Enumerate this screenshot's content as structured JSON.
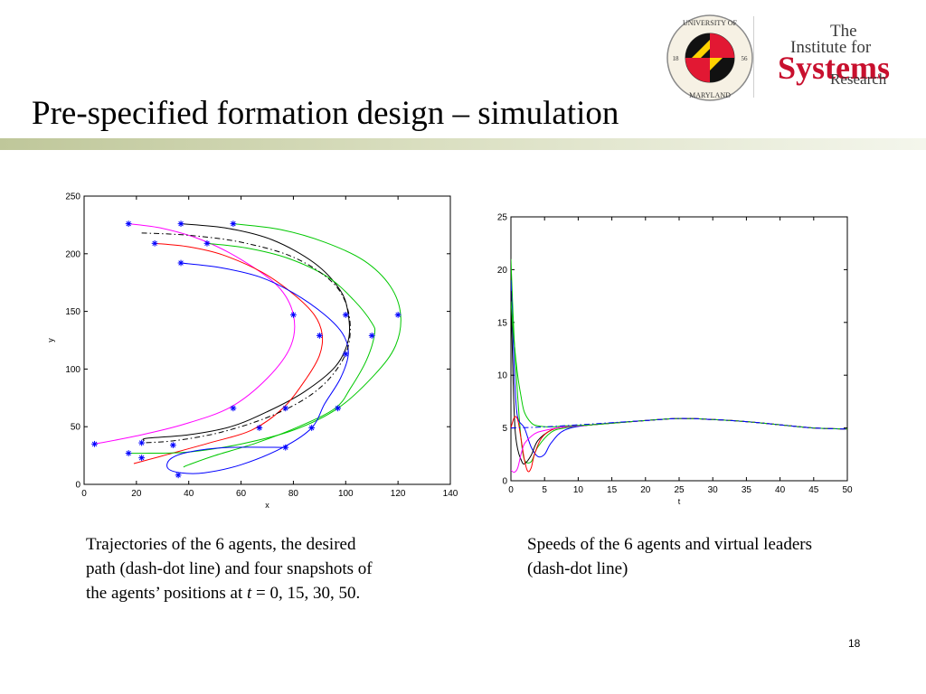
{
  "slide": {
    "title": "Pre-specified formation design – simulation",
    "page_number": "18",
    "accent_color": "#c8cf9f"
  },
  "logos": {
    "umd_seal": {
      "ring_top_text": "UNIVERSITY OF",
      "ring_bottom_text": "MARYLAND",
      "year_left": "18",
      "year_right": "56"
    },
    "isr": {
      "line1": "The",
      "line2": "Institute for",
      "line3": "Systems",
      "line4": "Research",
      "accent_color": "#c8102e"
    }
  },
  "captions": {
    "left_line1": "Trajectories of the 6 agents, the desired",
    "left_line2": "path (dash-dot line) and four snapshots of",
    "left_line3_pre": "the agents’ positions at ",
    "left_line3_var": "t",
    "left_line3_post": " = 0, 15, 30, 50.",
    "right_line1": "Speeds of the 6 agents and virtual leaders",
    "right_line2": "(dash-dot line)"
  },
  "chart_data": [
    {
      "type": "line",
      "xlabel": "x",
      "ylabel": "y",
      "xlim": [
        0,
        140
      ],
      "ylim": [
        0,
        250
      ],
      "xticks": [
        0,
        20,
        40,
        60,
        80,
        100,
        120,
        140
      ],
      "yticks": [
        0,
        50,
        100,
        150,
        200,
        250
      ],
      "grid": false,
      "series": [
        {
          "color": "#ff00ff",
          "style": "solid",
          "points": [
            [
              17,
              226
            ],
            [
              30,
              222
            ],
            [
              45,
              212
            ],
            [
              60,
              195
            ],
            [
              74,
              172
            ],
            [
              80,
              147
            ],
            [
              79,
              120
            ],
            [
              70,
              92
            ],
            [
              56,
              67
            ],
            [
              38,
              52
            ],
            [
              20,
              42
            ],
            [
              4,
              35
            ]
          ]
        },
        {
          "color": "#000000",
          "style": "solid",
          "points": [
            [
              37,
              226
            ],
            [
              55,
              222
            ],
            [
              72,
              212
            ],
            [
              88,
              192
            ],
            [
              98,
              168
            ],
            [
              101,
              147
            ],
            [
              101,
              125
            ],
            [
              96,
              102
            ],
            [
              84,
              80
            ],
            [
              70,
              63
            ],
            [
              56,
              50
            ],
            [
              40,
              43
            ],
            [
              24,
              40
            ],
            [
              23,
              38
            ]
          ]
        },
        {
          "color": "#ff0000",
          "style": "solid",
          "points": [
            [
              27,
              209
            ],
            [
              40,
              206
            ],
            [
              53,
              199
            ],
            [
              68,
              184
            ],
            [
              80,
              165
            ],
            [
              88,
              147
            ],
            [
              91,
              130
            ],
            [
              90,
              112
            ],
            [
              85,
              92
            ],
            [
              76,
              66
            ],
            [
              64,
              47
            ],
            [
              48,
              36
            ],
            [
              32,
              26
            ],
            [
              19,
              18
            ]
          ]
        },
        {
          "color": "#00c800",
          "style": "solid",
          "points": [
            [
              57,
              226
            ],
            [
              75,
              221
            ],
            [
              92,
              210
            ],
            [
              107,
              194
            ],
            [
              117,
              172
            ],
            [
              121,
              147
            ],
            [
              119,
              120
            ],
            [
              111,
              95
            ],
            [
              97,
              66
            ],
            [
              80,
              47
            ],
            [
              60,
              35
            ],
            [
              40,
              28
            ],
            [
              25,
              27
            ],
            [
              17,
              27
            ]
          ]
        },
        {
          "color": "#00c800",
          "style": "solid",
          "points": [
            [
              47,
              209
            ],
            [
              62,
              205
            ],
            [
              78,
              196
            ],
            [
              93,
              180
            ],
            [
              103,
              160
            ],
            [
              110,
              140
            ],
            [
              111,
              130
            ],
            [
              108,
              108
            ],
            [
              102,
              84
            ],
            [
              96,
              66
            ],
            [
              82,
              50
            ],
            [
              66,
              36
            ],
            [
              50,
              25
            ],
            [
              40,
              17
            ],
            [
              38,
              15
            ]
          ]
        },
        {
          "color": "#0000ff",
          "style": "solid",
          "points": [
            [
              37,
              192
            ],
            [
              52,
              188
            ],
            [
              67,
              180
            ],
            [
              80,
              166
            ],
            [
              92,
              147
            ],
            [
              99,
              130
            ],
            [
              101,
              113
            ],
            [
              98,
              92
            ],
            [
              92,
              70
            ],
            [
              87,
              49
            ],
            [
              76,
              32
            ],
            [
              60,
              17
            ],
            [
              46,
              10
            ],
            [
              37,
              10
            ],
            [
              32,
              14
            ],
            [
              33,
              22
            ],
            [
              40,
              28
            ],
            [
              55,
              32
            ],
            [
              77,
              32
            ]
          ]
        },
        {
          "color": "#000000",
          "style": "dashdot",
          "points": [
            [
              22,
              218
            ],
            [
              40,
              216
            ],
            [
              60,
              210
            ],
            [
              80,
              197
            ],
            [
              95,
              175
            ],
            [
              101,
              150
            ],
            [
              101,
              120
            ],
            [
              95,
              95
            ],
            [
              85,
              75
            ],
            [
              70,
              58
            ],
            [
              52,
              45
            ],
            [
              35,
              38
            ],
            [
              22,
              36
            ]
          ]
        }
      ],
      "snapshots": {
        "t0": [
          [
            17,
            226
          ],
          [
            37,
            226
          ],
          [
            57,
            226
          ],
          [
            27,
            209
          ],
          [
            47,
            209
          ],
          [
            37,
            192
          ]
        ],
        "t15": [
          [
            80,
            147
          ],
          [
            100,
            147
          ],
          [
            120,
            147
          ],
          [
            90,
            129
          ],
          [
            110,
            129
          ],
          [
            100,
            113
          ]
        ],
        "t30": [
          [
            57,
            66
          ],
          [
            77,
            66
          ],
          [
            97,
            66
          ],
          [
            67,
            49
          ],
          [
            87,
            49
          ],
          [
            77,
            32
          ]
        ],
        "t50": [
          [
            4,
            35
          ],
          [
            22,
            36
          ],
          [
            17,
            27
          ],
          [
            22,
            23
          ],
          [
            34,
            34
          ],
          [
            36,
            8
          ]
        ]
      }
    },
    {
      "type": "line",
      "xlabel": "t",
      "ylabel": "",
      "xlim": [
        0,
        50
      ],
      "ylim": [
        0,
        25
      ],
      "xticks": [
        0,
        5,
        10,
        15,
        20,
        25,
        30,
        35,
        40,
        45,
        50
      ],
      "yticks": [
        0,
        5,
        10,
        15,
        20,
        25
      ],
      "grid": false,
      "series": [
        {
          "color": "#00c800",
          "style": "solid",
          "points": [
            [
              0,
              21
            ],
            [
              0.3,
              16
            ],
            [
              0.6,
              12
            ],
            [
              1,
              8
            ],
            [
              1.5,
              4
            ],
            [
              2,
              2
            ],
            [
              3,
              1.8
            ],
            [
              4,
              3.2
            ],
            [
              6,
              4.6
            ],
            [
              8,
              5
            ],
            [
              12,
              5.3
            ],
            [
              20,
              5.7
            ],
            [
              25,
              5.9
            ],
            [
              30,
              5.8
            ],
            [
              35,
              5.6
            ],
            [
              40,
              5.3
            ],
            [
              45,
              5
            ],
            [
              50,
              4.9
            ]
          ]
        },
        {
          "color": "#0000ff",
          "style": "solid",
          "points": [
            [
              0,
              19
            ],
            [
              0.3,
              14
            ],
            [
              0.6,
              9
            ],
            [
              1,
              6
            ],
            [
              2,
              5
            ],
            [
              3,
              3.2
            ],
            [
              4,
              2.3
            ],
            [
              5,
              2.5
            ],
            [
              6,
              3.6
            ],
            [
              8,
              4.8
            ],
            [
              12,
              5.3
            ],
            [
              20,
              5.7
            ],
            [
              25,
              5.9
            ],
            [
              30,
              5.8
            ],
            [
              35,
              5.6
            ],
            [
              40,
              5.3
            ],
            [
              45,
              5
            ],
            [
              50,
              4.9
            ]
          ]
        },
        {
          "color": "#000000",
          "style": "solid",
          "points": [
            [
              0,
              18
            ],
            [
              0.3,
              10
            ],
            [
              0.6,
              5
            ],
            [
              1,
              3
            ],
            [
              1.5,
              2
            ],
            [
              2,
              1.6
            ],
            [
              3,
              2.4
            ],
            [
              4,
              3.8
            ],
            [
              6,
              4.8
            ],
            [
              8,
              5.1
            ],
            [
              12,
              5.3
            ],
            [
              20,
              5.7
            ],
            [
              25,
              5.9
            ],
            [
              30,
              5.8
            ],
            [
              35,
              5.6
            ],
            [
              40,
              5.3
            ],
            [
              45,
              5
            ],
            [
              50,
              4.9
            ]
          ]
        },
        {
          "color": "#ff0000",
          "style": "solid",
          "points": [
            [
              0,
              5
            ],
            [
              0.5,
              6
            ],
            [
              1,
              5.8
            ],
            [
              1.5,
              4
            ],
            [
              2,
              2
            ],
            [
              2.5,
              0.9
            ],
            [
              3,
              1.2
            ],
            [
              3.5,
              2.5
            ],
            [
              4.5,
              4
            ],
            [
              6,
              4.8
            ],
            [
              8,
              5.1
            ],
            [
              12,
              5.3
            ],
            [
              20,
              5.7
            ],
            [
              25,
              5.9
            ],
            [
              30,
              5.8
            ],
            [
              35,
              5.6
            ],
            [
              40,
              5.3
            ],
            [
              45,
              5
            ],
            [
              50,
              4.9
            ]
          ]
        },
        {
          "color": "#ff00ff",
          "style": "solid",
          "points": [
            [
              0,
              1
            ],
            [
              0.5,
              0.8
            ],
            [
              1,
              1.2
            ],
            [
              1.5,
              2.5
            ],
            [
              2,
              3.5
            ],
            [
              3,
              4.2
            ],
            [
              4,
              4.6
            ],
            [
              6,
              4.9
            ],
            [
              8,
              5.1
            ],
            [
              12,
              5.3
            ],
            [
              20,
              5.7
            ],
            [
              25,
              5.9
            ],
            [
              30,
              5.8
            ],
            [
              35,
              5.6
            ],
            [
              40,
              5.3
            ],
            [
              45,
              5
            ],
            [
              50,
              4.9
            ]
          ]
        },
        {
          "color": "#00c800",
          "style": "solid",
          "points": [
            [
              0,
              17
            ],
            [
              0.5,
              13
            ],
            [
              1,
              10
            ],
            [
              1.5,
              8
            ],
            [
              2,
              6.5
            ],
            [
              3,
              5.5
            ],
            [
              4,
              5.2
            ],
            [
              6,
              5.1
            ],
            [
              8,
              5.2
            ],
            [
              12,
              5.3
            ],
            [
              20,
              5.7
            ],
            [
              25,
              5.9
            ],
            [
              30,
              5.8
            ],
            [
              35,
              5.6
            ],
            [
              40,
              5.3
            ],
            [
              45,
              5
            ],
            [
              50,
              4.9
            ]
          ]
        },
        {
          "color": "#0000ff",
          "style": "dashdot",
          "points": [
            [
              0,
              5
            ],
            [
              5,
              5.1
            ],
            [
              10,
              5.3
            ],
            [
              15,
              5.5
            ],
            [
              20,
              5.7
            ],
            [
              25,
              5.9
            ],
            [
              30,
              5.8
            ],
            [
              35,
              5.6
            ],
            [
              40,
              5.3
            ],
            [
              45,
              5
            ],
            [
              50,
              4.9
            ]
          ]
        }
      ]
    }
  ]
}
